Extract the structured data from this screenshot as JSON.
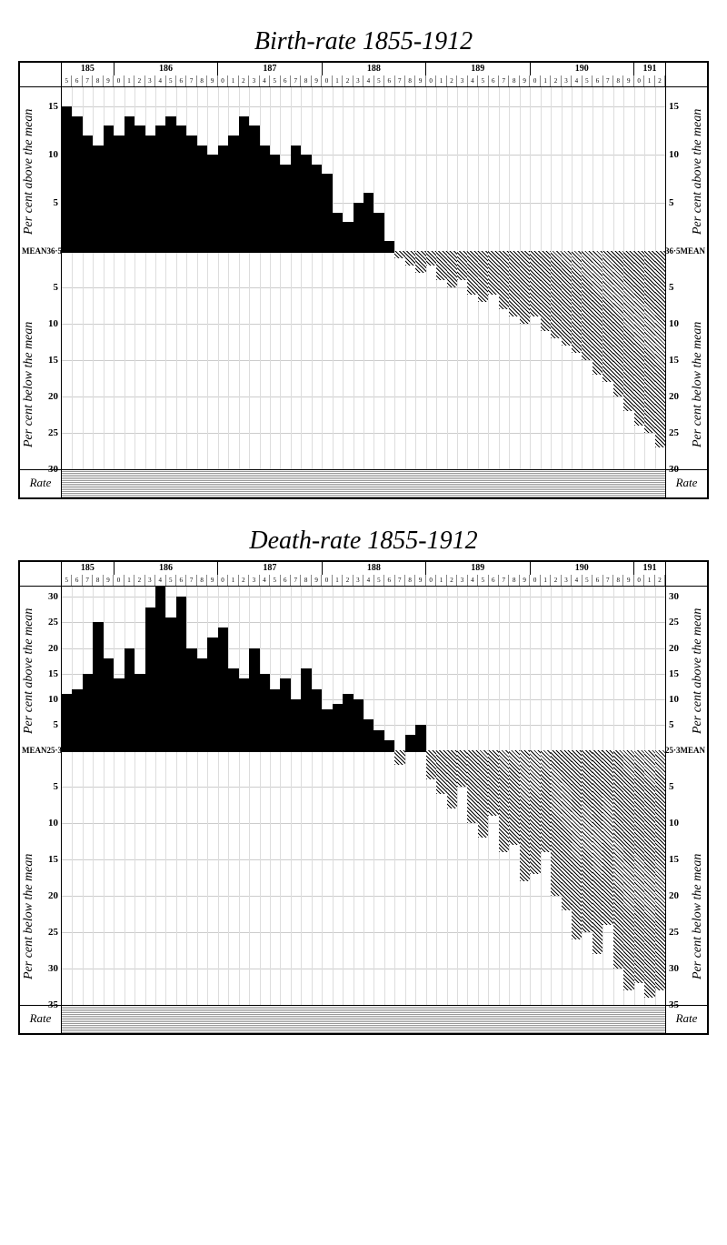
{
  "charts": [
    {
      "title": "Birth-rate 1855-1912",
      "mean_value": "36·5",
      "mean_label_left": "MEAN36·5",
      "mean_label_right": "36·5MEAN",
      "above_label": "Per cent above the mean",
      "below_label": "Per cent below the mean",
      "rate_label": "Rate",
      "decades": [
        "185",
        "186",
        "187",
        "188",
        "189",
        "190",
        "191"
      ],
      "year_digits": [
        "5",
        "6",
        "7",
        "8",
        "9",
        "0",
        "1",
        "2",
        "3",
        "4",
        "5",
        "6",
        "7",
        "8",
        "9",
        "0",
        "1",
        "2",
        "3",
        "4",
        "5",
        "6",
        "7",
        "8",
        "9",
        "0",
        "1",
        "2",
        "3",
        "4",
        "5",
        "6",
        "7",
        "8",
        "9",
        "0",
        "1",
        "2",
        "3",
        "4",
        "5",
        "6",
        "7",
        "8",
        "9",
        "0",
        "1",
        "2",
        "3",
        "4",
        "5",
        "6",
        "7",
        "8",
        "9",
        "0",
        "1",
        "2"
      ],
      "ticks_above": [
        15,
        10,
        5
      ],
      "ticks_below": [
        5,
        10,
        15,
        20,
        25,
        30
      ],
      "above_max": 17,
      "below_max": 30,
      "bars_above": [
        15,
        14,
        12,
        11,
        13,
        12,
        14,
        13,
        12,
        13,
        14,
        13,
        12,
        11,
        10,
        11,
        12,
        14,
        13,
        11,
        10,
        9,
        11,
        10,
        9,
        8,
        4,
        3,
        5,
        6,
        4,
        1,
        0,
        0,
        0,
        0,
        0,
        0,
        0,
        0,
        0,
        0,
        0,
        0,
        0,
        0,
        0,
        0,
        0,
        0,
        0,
        0,
        0,
        0,
        0,
        0,
        0,
        0
      ],
      "bars_below": [
        0,
        0,
        0,
        0,
        0,
        0,
        0,
        0,
        0,
        0,
        0,
        0,
        0,
        0,
        0,
        0,
        0,
        0,
        0,
        0,
        0,
        0,
        0,
        0,
        0,
        0,
        0,
        0,
        0,
        0,
        0,
        0,
        1,
        2,
        3,
        2,
        4,
        5,
        4,
        6,
        7,
        6,
        8,
        9,
        10,
        9,
        11,
        12,
        13,
        14,
        15,
        17,
        18,
        20,
        22,
        24,
        25,
        27
      ],
      "bar_color_above": "#000000",
      "hatch_color": "#000000",
      "background_color": "#ffffff"
    },
    {
      "title": "Death-rate 1855-1912",
      "mean_value": "25·3",
      "mean_label_left": "MEAN25·3",
      "mean_label_right": "25·3MEAN",
      "above_label": "Per cent above the mean",
      "below_label": "Per cent below the mean",
      "rate_label": "Rate",
      "decades": [
        "185",
        "186",
        "187",
        "188",
        "189",
        "190",
        "191"
      ],
      "year_digits": [
        "5",
        "6",
        "7",
        "8",
        "9",
        "0",
        "1",
        "2",
        "3",
        "4",
        "5",
        "6",
        "7",
        "8",
        "9",
        "0",
        "1",
        "2",
        "3",
        "4",
        "5",
        "6",
        "7",
        "8",
        "9",
        "0",
        "1",
        "2",
        "3",
        "4",
        "5",
        "6",
        "7",
        "8",
        "9",
        "0",
        "1",
        "2",
        "3",
        "4",
        "5",
        "6",
        "7",
        "8",
        "9",
        "0",
        "1",
        "2",
        "3",
        "4",
        "5",
        "6",
        "7",
        "8",
        "9",
        "0",
        "1",
        "2"
      ],
      "ticks_above": [
        30,
        25,
        20,
        15,
        10,
        5
      ],
      "ticks_below": [
        5,
        10,
        15,
        20,
        25,
        30,
        35
      ],
      "above_max": 32,
      "below_max": 35,
      "bars_above": [
        11,
        12,
        15,
        25,
        18,
        14,
        20,
        15,
        28,
        32,
        26,
        30,
        20,
        18,
        22,
        24,
        16,
        14,
        20,
        15,
        12,
        14,
        10,
        16,
        12,
        8,
        9,
        11,
        10,
        6,
        4,
        2,
        0,
        3,
        5,
        0,
        0,
        0,
        0,
        0,
        0,
        0,
        0,
        0,
        0,
        0,
        0,
        0,
        0,
        0,
        0,
        0,
        0,
        0,
        0,
        0,
        0,
        0
      ],
      "bars_below": [
        0,
        0,
        0,
        0,
        0,
        0,
        0,
        0,
        0,
        0,
        0,
        0,
        0,
        0,
        0,
        0,
        0,
        0,
        0,
        0,
        0,
        0,
        0,
        0,
        0,
        0,
        0,
        0,
        0,
        0,
        0,
        0,
        2,
        0,
        0,
        4,
        6,
        8,
        5,
        10,
        12,
        9,
        14,
        13,
        18,
        17,
        14,
        20,
        22,
        26,
        25,
        28,
        24,
        30,
        33,
        32,
        34,
        33
      ],
      "bar_color_above": "#000000",
      "hatch_color": "#000000",
      "background_color": "#ffffff"
    }
  ]
}
